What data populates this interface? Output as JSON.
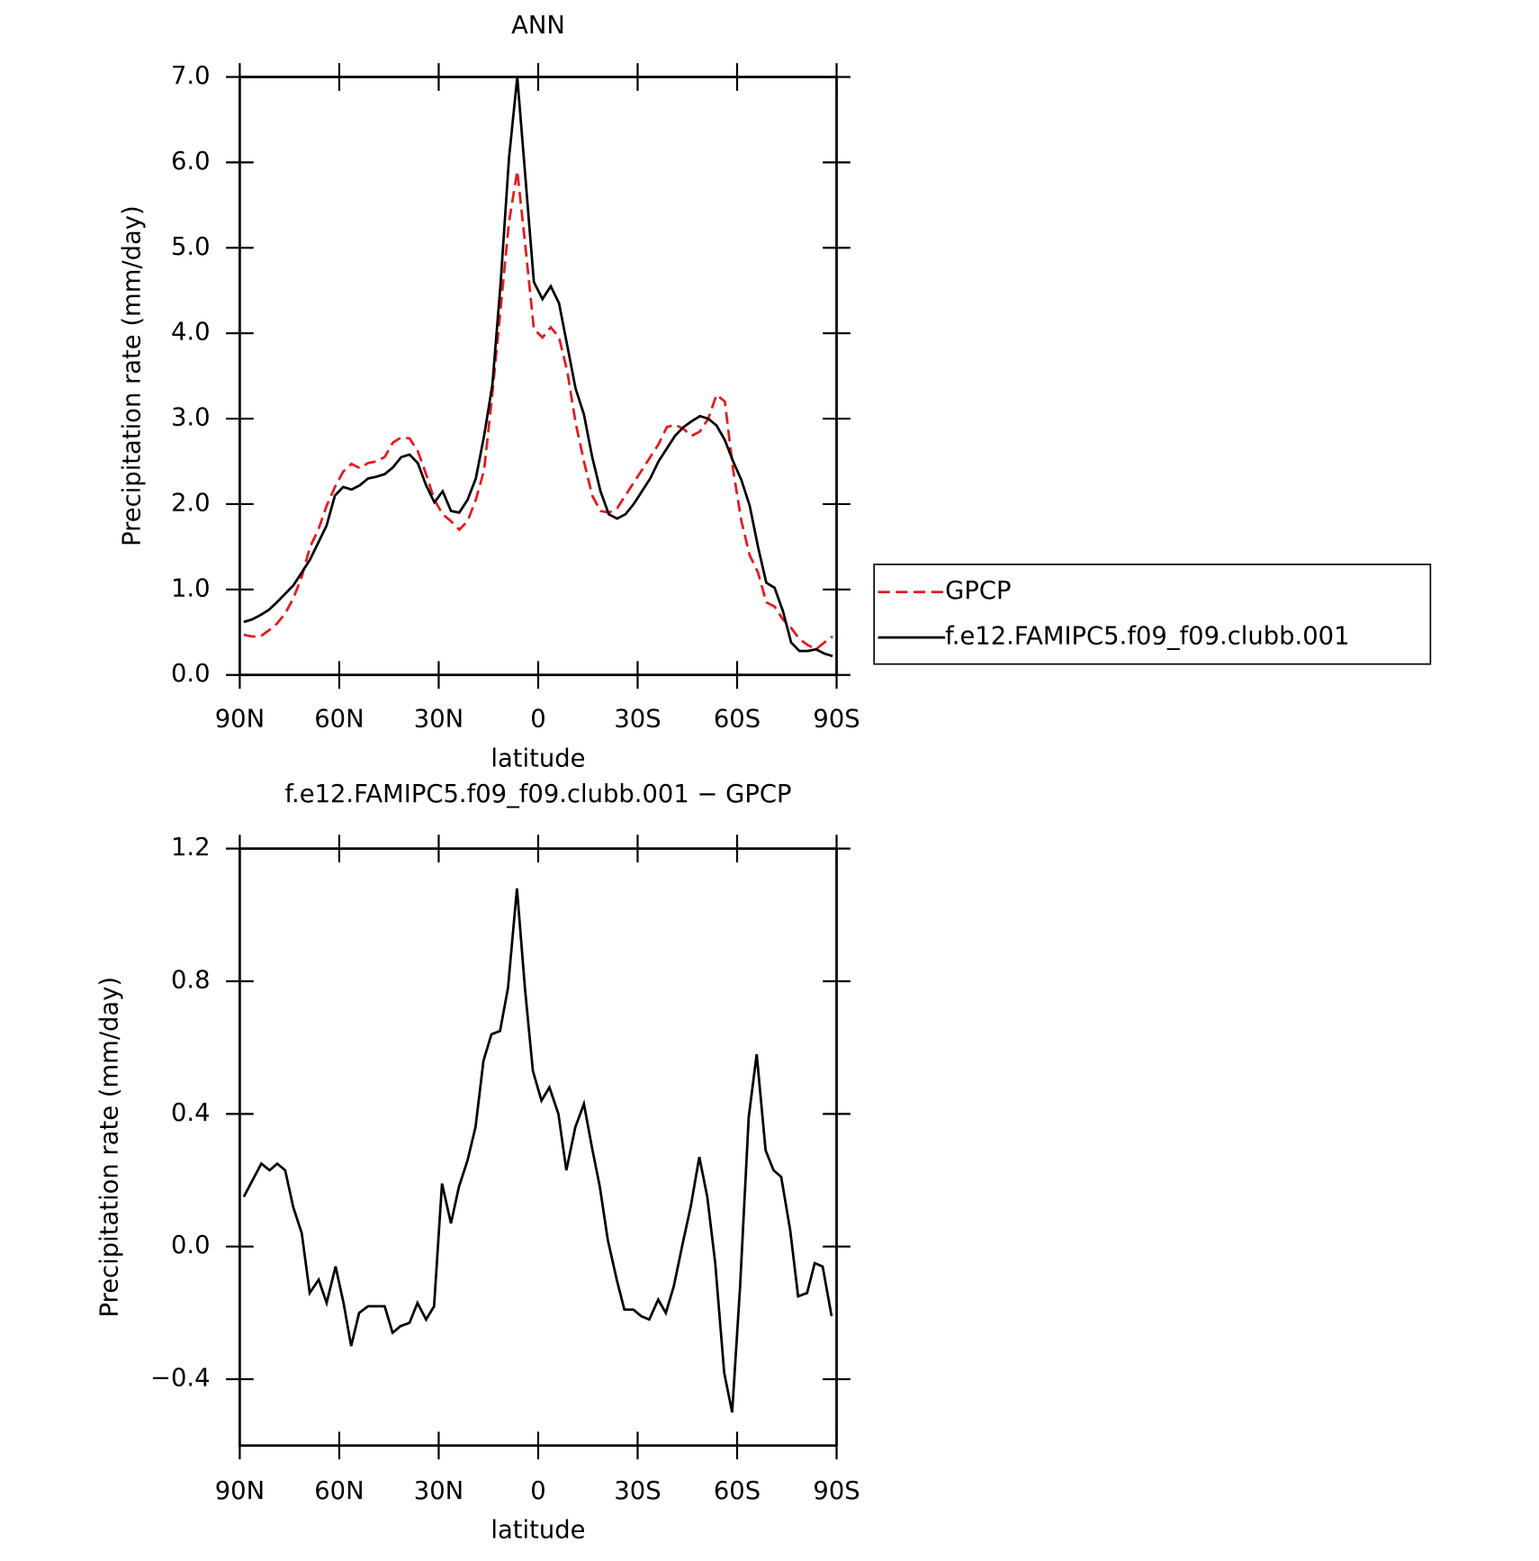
{
  "chart_data": [
    {
      "type": "line",
      "title": "ANN",
      "xlabel": "latitude",
      "ylabel": "Precipitation rate (mm/day)",
      "xlim": [
        90,
        -90
      ],
      "xticks": [
        {
          "value": 90,
          "label": "90N"
        },
        {
          "value": 60,
          "label": "60N"
        },
        {
          "value": 30,
          "label": "30N"
        },
        0,
        {
          "value": -30,
          "label": "30S"
        },
        {
          "value": -60,
          "label": "60S"
        },
        {
          "value": -90,
          "label": "90S"
        }
      ],
      "ylim": [
        0,
        7
      ],
      "yticks": [
        {
          "value": 0,
          "label": "0.0"
        },
        {
          "value": 1,
          "label": "1.0"
        },
        {
          "value": 2,
          "label": "2.0"
        },
        {
          "value": 3,
          "label": "3.0"
        },
        {
          "value": 4,
          "label": "4.0"
        },
        {
          "value": 5,
          "label": "5.0"
        },
        {
          "value": 6,
          "label": "6.0"
        },
        {
          "value": 7,
          "label": "7.0"
        }
      ],
      "legend": "right",
      "series": [
        {
          "name": "GPCP",
          "color": "#e41a1c",
          "linestyle": "dashed",
          "x": [
            88.8,
            86.3,
            83.8,
            81.3,
            78.8,
            76.3,
            73.8,
            71.3,
            68.8,
            66.3,
            63.8,
            61.3,
            58.8,
            56.3,
            53.8,
            51.3,
            48.8,
            46.3,
            43.8,
            41.3,
            38.8,
            36.3,
            33.8,
            31.3,
            28.8,
            26.3,
            23.8,
            21.3,
            18.8,
            16.3,
            13.8,
            11.3,
            8.8,
            6.3,
            3.8,
            1.3,
            -1.3,
            -3.8,
            -6.3,
            -8.8,
            -11.3,
            -13.8,
            -16.3,
            -18.8,
            -21.3,
            -23.8,
            -26.3,
            -28.8,
            -31.3,
            -33.8,
            -36.3,
            -38.8,
            -41.3,
            -43.8,
            -46.3,
            -48.8,
            -51.3,
            -53.8,
            -56.3,
            -58.8,
            -61.3,
            -63.8,
            -66.3,
            -68.8,
            -71.3,
            -73.8,
            -76.3,
            -78.8,
            -81.3,
            -83.8,
            -86.3,
            -88.8
          ],
          "values": [
            0.47,
            0.45,
            0.45,
            0.52,
            0.6,
            0.72,
            0.9,
            1.15,
            1.5,
            1.7,
            1.98,
            2.2,
            2.38,
            2.47,
            2.42,
            2.48,
            2.5,
            2.55,
            2.72,
            2.78,
            2.77,
            2.62,
            2.35,
            2.05,
            1.88,
            1.8,
            1.7,
            1.8,
            2.05,
            2.4,
            3.3,
            4.3,
            5.3,
            5.9,
            5.0,
            4.05,
            3.95,
            4.07,
            3.95,
            3.55,
            2.95,
            2.5,
            2.1,
            1.92,
            1.9,
            1.95,
            2.1,
            2.25,
            2.4,
            2.55,
            2.7,
            2.9,
            2.93,
            2.88,
            2.8,
            2.85,
            3.0,
            3.28,
            3.2,
            2.4,
            1.8,
            1.4,
            1.2,
            0.85,
            0.8,
            0.65,
            0.55,
            0.42,
            0.35,
            0.3,
            0.38,
            0.45
          ]
        },
        {
          "name": "f.e12.FAMIPC5.f09_f09.clubb.001",
          "color": "#000000",
          "linestyle": "solid",
          "x": [
            88.8,
            86.3,
            83.8,
            81.3,
            78.8,
            76.3,
            73.8,
            71.3,
            68.8,
            66.3,
            63.8,
            61.3,
            58.8,
            56.3,
            53.8,
            51.3,
            48.8,
            46.3,
            43.8,
            41.3,
            38.8,
            36.3,
            33.8,
            31.3,
            28.8,
            26.3,
            23.8,
            21.3,
            18.8,
            16.3,
            13.8,
            11.3,
            8.8,
            6.3,
            3.8,
            1.3,
            -1.3,
            -3.8,
            -6.3,
            -8.8,
            -11.3,
            -13.8,
            -16.3,
            -18.8,
            -21.3,
            -23.8,
            -26.3,
            -28.8,
            -31.3,
            -33.8,
            -36.3,
            -38.8,
            -41.3,
            -43.8,
            -46.3,
            -48.8,
            -51.3,
            -53.8,
            -56.3,
            -58.8,
            -61.3,
            -63.8,
            -66.3,
            -68.8,
            -71.3,
            -73.8,
            -76.3,
            -78.8,
            -81.3,
            -83.8,
            -86.3,
            -88.8
          ],
          "values": [
            0.62,
            0.65,
            0.7,
            0.76,
            0.85,
            0.95,
            1.05,
            1.2,
            1.35,
            1.55,
            1.75,
            2.1,
            2.2,
            2.17,
            2.22,
            2.3,
            2.32,
            2.35,
            2.43,
            2.55,
            2.58,
            2.48,
            2.22,
            2.02,
            2.15,
            1.92,
            1.9,
            2.05,
            2.3,
            2.8,
            3.4,
            4.6,
            6.05,
            7.0,
            5.8,
            4.6,
            4.4,
            4.55,
            4.35,
            3.85,
            3.35,
            3.05,
            2.55,
            2.15,
            1.88,
            1.83,
            1.88,
            2.0,
            2.15,
            2.3,
            2.5,
            2.65,
            2.8,
            2.9,
            2.97,
            3.03,
            3.0,
            2.92,
            2.75,
            2.5,
            2.28,
            1.98,
            1.5,
            1.08,
            1.02,
            0.75,
            0.38,
            0.28,
            0.28,
            0.3,
            0.25,
            0.22
          ]
        }
      ]
    },
    {
      "type": "line",
      "title": "f.e12.FAMIPC5.f09_f09.clubb.001 − GPCP",
      "xlabel": "latitude",
      "ylabel": "Precipitation rate (mm/day)",
      "xlim": [
        90,
        -90
      ],
      "xticks": [
        {
          "value": 90,
          "label": "90N"
        },
        {
          "value": 60,
          "label": "60N"
        },
        {
          "value": 30,
          "label": "30N"
        },
        0,
        {
          "value": -30,
          "label": "30S"
        },
        {
          "value": -60,
          "label": "60S"
        },
        {
          "value": -90,
          "label": "90S"
        }
      ],
      "ylim": [
        -0.6,
        1.2
      ],
      "yticks": [
        {
          "value": -0.4,
          "label": "−0.4"
        },
        {
          "value": 0,
          "label": "0.0"
        },
        0.4,
        0.8,
        1.2
      ],
      "series": [
        {
          "color": "#000000",
          "linestyle": "solid",
          "x": [
            88.8,
            83.5,
            81,
            78.7,
            76.3,
            73.9,
            71.3,
            68.9,
            66.2,
            63.8,
            61.1,
            58.7,
            56.4,
            54,
            51.3,
            48.9,
            46.3,
            43.9,
            41.5,
            38.8,
            36.4,
            33.8,
            31.4,
            29,
            26.3,
            23.9,
            21.3,
            18.9,
            16.5,
            14.1,
            11.5,
            9.1,
            6.4,
            4,
            1.6,
            -1,
            -3.4,
            -6.1,
            -8.5,
            -11.2,
            -13.8,
            -16.2,
            -18.6,
            -21,
            -23.7,
            -26,
            -28.7,
            -31.1,
            -33.5,
            -36.2,
            -38.5,
            -40.9,
            -43.6,
            -46,
            -48.6,
            -51,
            -53.4,
            -56.1,
            -58.5,
            -60.9,
            -63.5,
            -65.9,
            -68.6,
            -71,
            -73.3,
            -76,
            -78.4,
            -81.1,
            -83.4,
            -85.8,
            -88.5
          ],
          "values": [
            0.15,
            0.25,
            0.23,
            0.25,
            0.23,
            0.12,
            0.04,
            -0.14,
            -0.1,
            -0.17,
            -0.06,
            -0.17,
            -0.3,
            -0.2,
            -0.18,
            -0.18,
            -0.18,
            -0.26,
            -0.24,
            -0.23,
            -0.17,
            -0.22,
            -0.18,
            0.19,
            0.07,
            0.18,
            0.26,
            0.36,
            0.56,
            0.64,
            0.65,
            0.78,
            1.08,
            0.78,
            0.53,
            0.44,
            0.48,
            0.4,
            0.23,
            0.36,
            0.43,
            0.3,
            0.18,
            0.02,
            -0.1,
            -0.19,
            -0.19,
            -0.21,
            -0.22,
            -0.16,
            -0.2,
            -0.12,
            0.01,
            0.12,
            0.27,
            0.15,
            -0.05,
            -0.38,
            -0.5,
            -0.12,
            0.39,
            0.58,
            0.29,
            0.23,
            0.21,
            0.05,
            -0.15,
            -0.14,
            -0.05,
            -0.06,
            -0.21
          ]
        }
      ]
    }
  ]
}
